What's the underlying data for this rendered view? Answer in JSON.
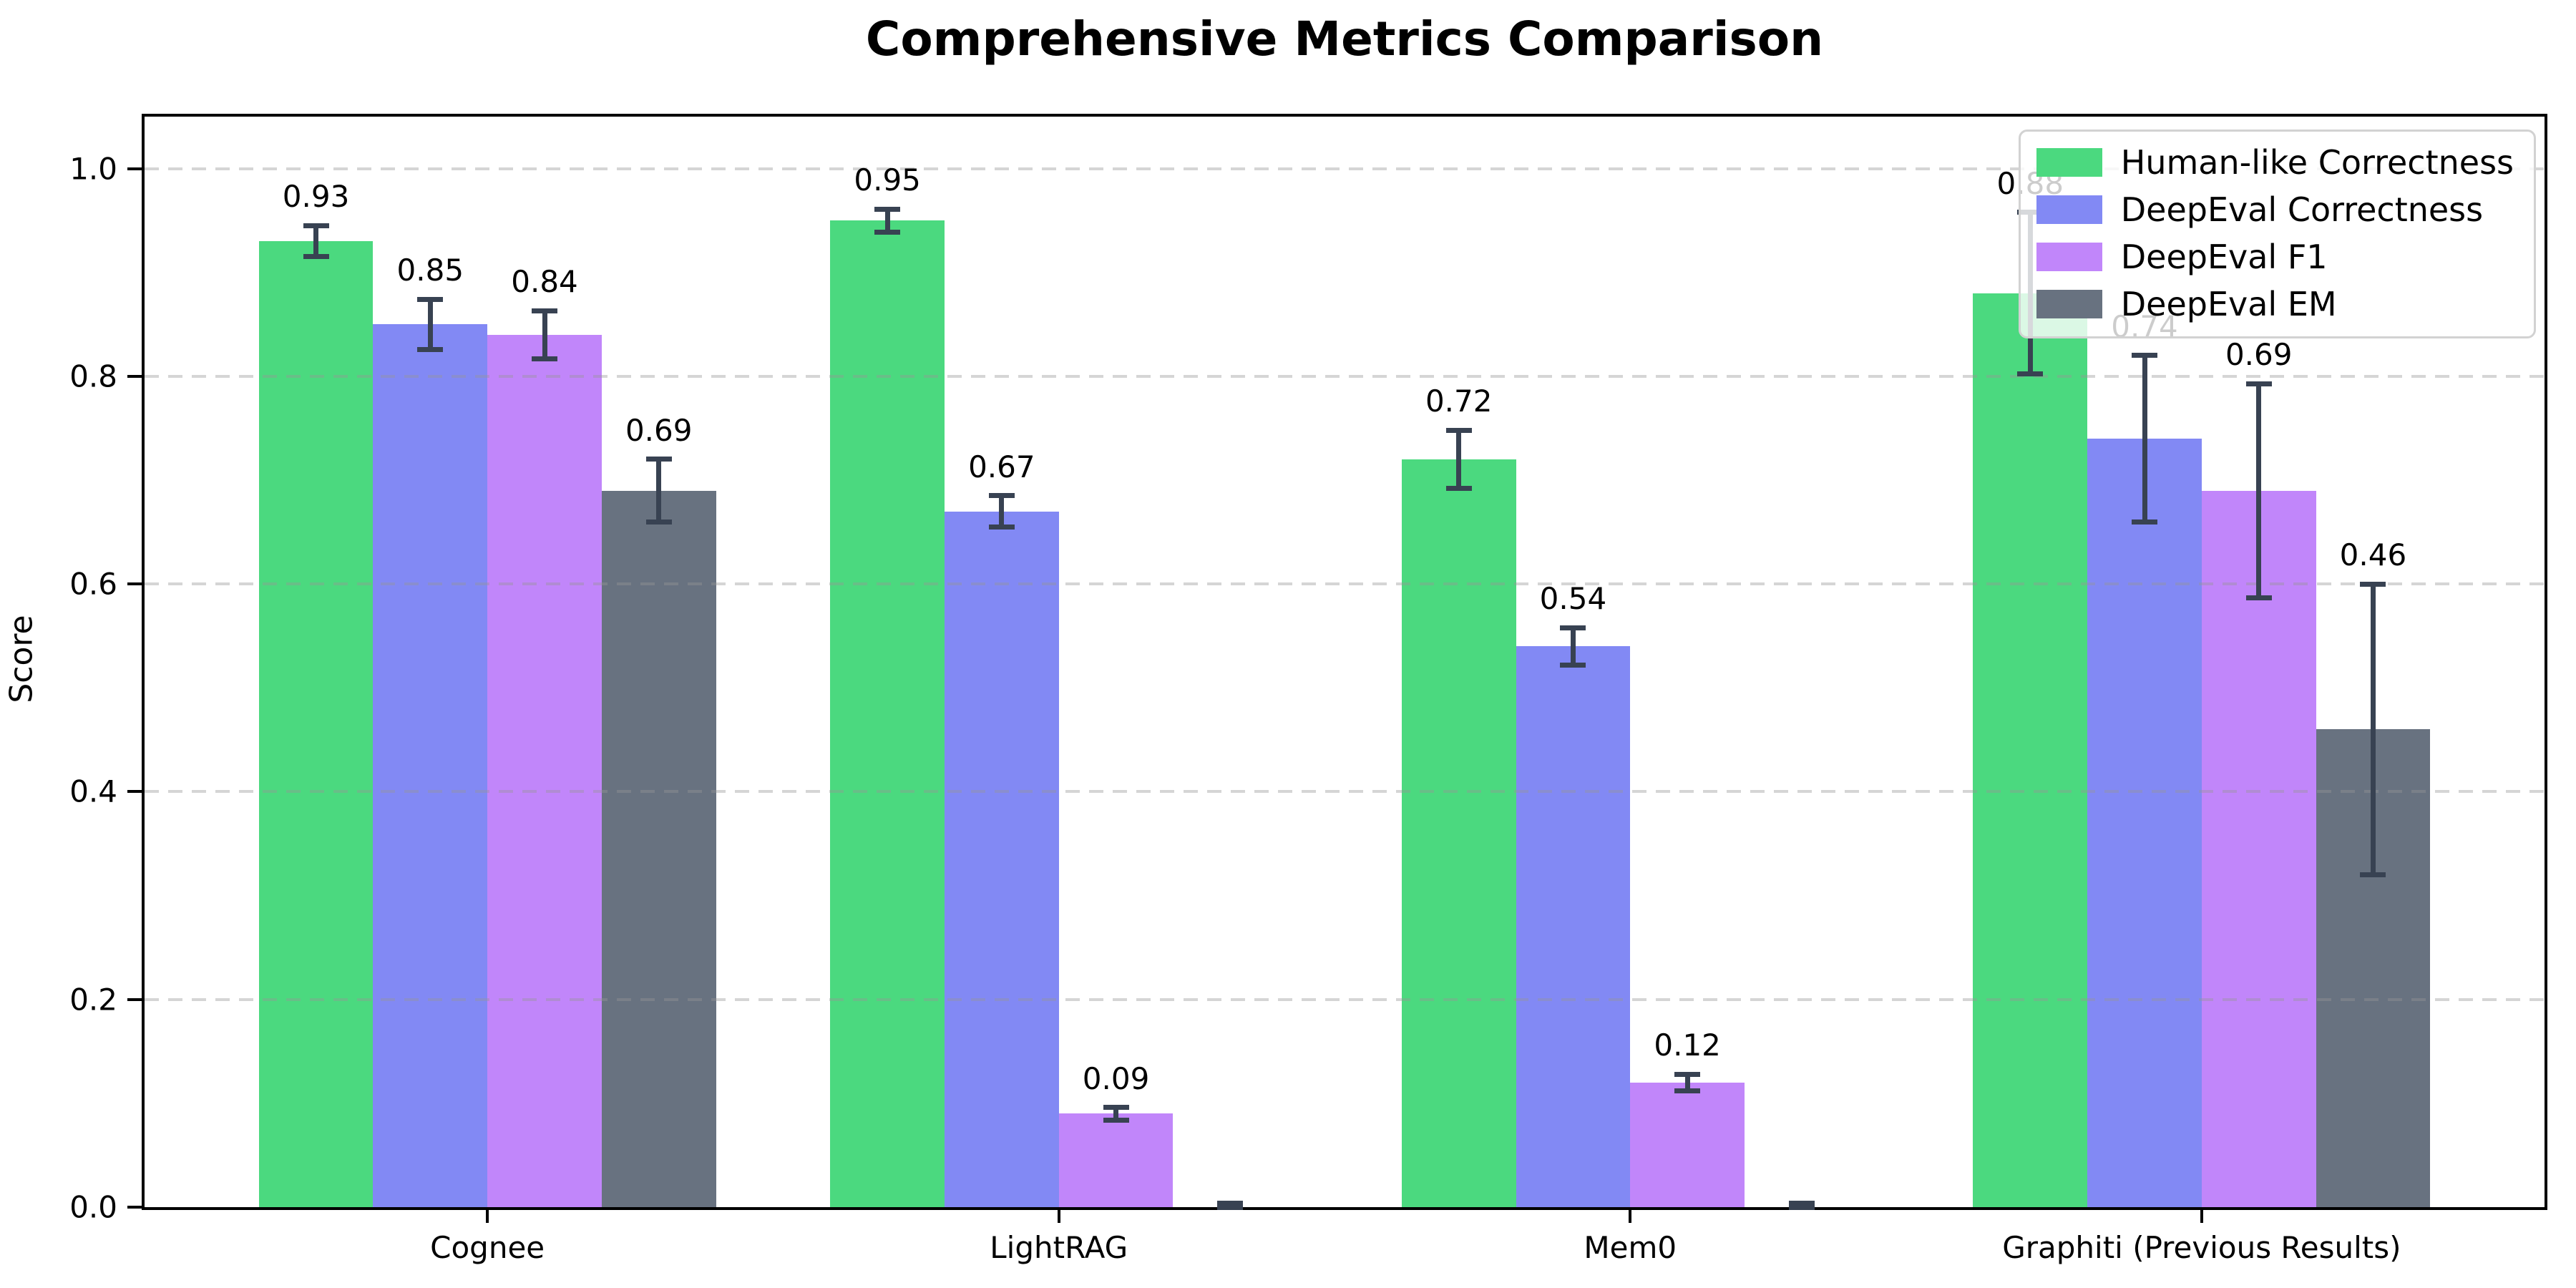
{
  "chart_data": {
    "type": "bar",
    "title": "Comprehensive Metrics Comparison",
    "xlabel": "",
    "ylabel": "Score",
    "ylim": [
      0,
      1.05
    ],
    "yticks": [
      "0.0",
      "0.2",
      "0.4",
      "0.6",
      "0.8",
      "1.0"
    ],
    "grid": "horizontal-dashed",
    "legend_position": "upper right",
    "categories": [
      "Cognee",
      "LightRAG",
      "Mem0",
      "Graphiti (Previous Results)"
    ],
    "series": [
      {
        "name": "Human-like Correctness",
        "color": "#4bd97f",
        "values": [
          0.93,
          0.95,
          0.72,
          0.88
        ],
        "errors": [
          0.015,
          0.011,
          0.028,
          0.078
        ],
        "labels": [
          "0.93",
          "0.95",
          "0.72",
          "0.88"
        ]
      },
      {
        "name": "DeepEval Correctness",
        "color": "#8289f4",
        "values": [
          0.85,
          0.67,
          0.54,
          0.74
        ],
        "errors": [
          0.024,
          0.015,
          0.018,
          0.08
        ],
        "labels": [
          "0.85",
          "0.67",
          "0.54",
          "0.74"
        ]
      },
      {
        "name": "DeepEval F1",
        "color": "#c186fa",
        "values": [
          0.84,
          0.09,
          0.12,
          0.69
        ],
        "errors": [
          0.023,
          0.006,
          0.008,
          0.103
        ],
        "labels": [
          "0.84",
          "0.09",
          "0.12",
          "0.69"
        ]
      },
      {
        "name": "DeepEval EM",
        "color": "#687280",
        "values": [
          0.69,
          0.0,
          0.0,
          0.46
        ],
        "errors": [
          0.03,
          0.004,
          0.004,
          0.14
        ],
        "labels": [
          "0.69",
          "",
          "",
          "0.46"
        ]
      }
    ],
    "error_bar_color": "#384252"
  }
}
